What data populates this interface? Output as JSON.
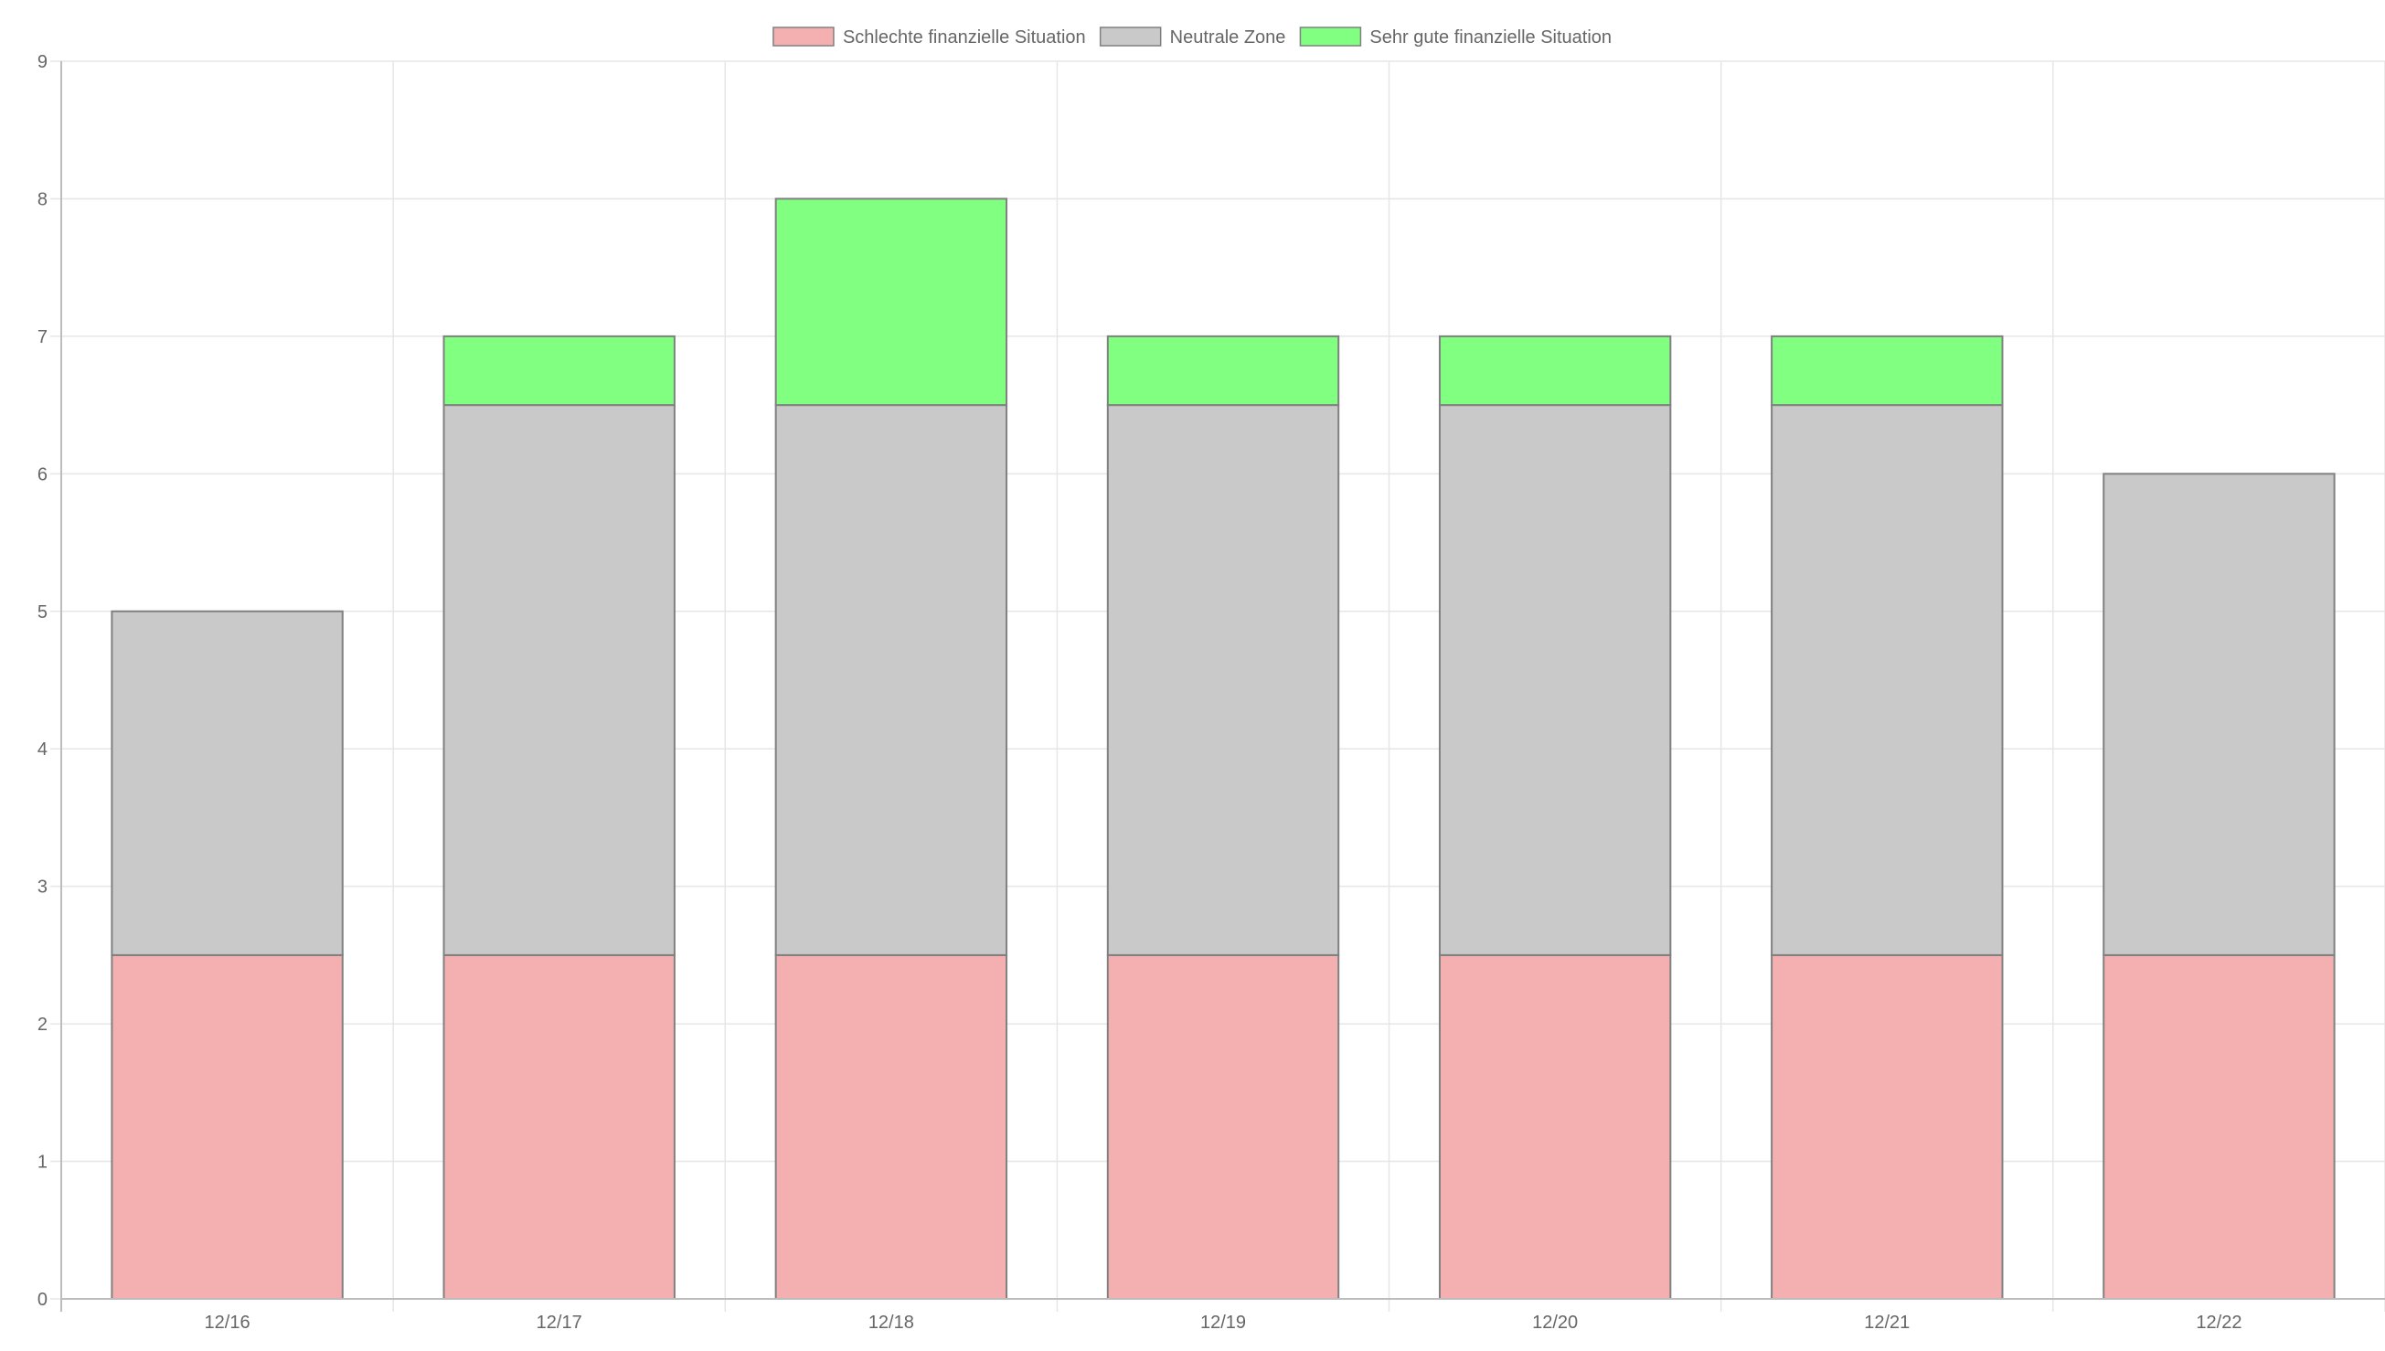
{
  "chart_data": {
    "type": "bar",
    "stacked": true,
    "title": "",
    "xlabel": "",
    "ylabel": "",
    "categories": [
      "12/16",
      "12/17",
      "12/18",
      "12/19",
      "12/20",
      "12/21",
      "12/22"
    ],
    "ylim": [
      0,
      9
    ],
    "yticks": [
      0,
      1,
      2,
      3,
      4,
      5,
      6,
      7,
      8,
      9
    ],
    "grid": true,
    "legend_position": "top-center",
    "series": [
      {
        "name": "Schlechte finanzielle Situation",
        "values": [
          2.5,
          2.5,
          2.5,
          2.5,
          2.5,
          2.5,
          2.5
        ],
        "color": "#f4b0b0"
      },
      {
        "name": "Neutrale Zone",
        "values": [
          2.5,
          4,
          4,
          4,
          4,
          4,
          3.5
        ],
        "color": "#c9c9c9"
      },
      {
        "name": "Sehr gute finanzielle Situation",
        "values": [
          0,
          0.5,
          1.5,
          0.5,
          0.5,
          0.5,
          0
        ],
        "color": "#80ff80"
      }
    ],
    "bar_border_color": "#808080",
    "grid_color": "#e6e6e6",
    "axis_color": "#bdbdbd",
    "text_color": "#666666"
  }
}
